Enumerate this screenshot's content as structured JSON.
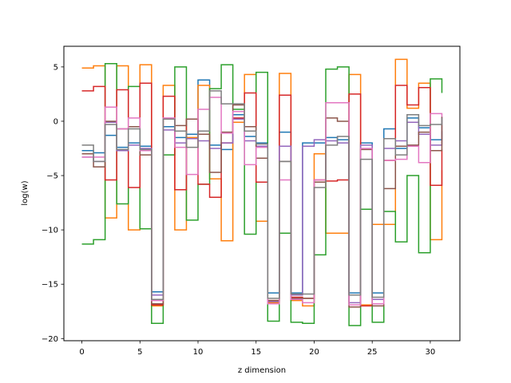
{
  "chart_data": {
    "type": "line",
    "step": "post",
    "xlabel": "z dimension",
    "ylabel": "log(w)",
    "xlim": [
      -1.55,
      32.55
    ],
    "ylim": [
      -20.2,
      6.9
    ],
    "xticks": [
      0,
      5,
      10,
      15,
      20,
      25,
      30
    ],
    "yticks": [
      5,
      0,
      -5,
      -10,
      -15,
      -20
    ],
    "grid": false,
    "x": [
      0,
      1,
      2,
      3,
      4,
      5,
      6,
      7,
      8,
      9,
      10,
      11,
      12,
      13,
      14,
      15,
      16,
      17,
      18,
      19,
      20,
      21,
      22,
      23,
      24,
      25,
      26,
      27,
      28,
      29,
      30,
      31
    ],
    "series": [
      {
        "color": "#1f77b4",
        "values": [
          -2.7,
          -2.9,
          -1.3,
          -2.4,
          -2.0,
          -2.3,
          -15.7,
          -0.5,
          -1.5,
          -1.2,
          3.8,
          -2.2,
          -2.6,
          0.6,
          -1.4,
          -2.0,
          -15.8,
          -1.0,
          -15.8,
          -2.0,
          -2.0,
          -1.5,
          -1.7,
          -15.8,
          -2.0,
          -15.8,
          -0.7,
          -2.5,
          0.3,
          -0.6,
          -1.7,
          -0.9
        ]
      },
      {
        "color": "#ff7f0e",
        "values": [
          4.9,
          5.1,
          -8.9,
          5.1,
          -10.0,
          5.2,
          -17.0,
          3.3,
          -10.0,
          -1.5,
          3.3,
          -5.3,
          -11.0,
          -0.1,
          4.3,
          -9.2,
          -16.7,
          4.4,
          -16.5,
          -17.0,
          -3.0,
          -10.3,
          -10.3,
          4.3,
          -16.9,
          -9.5,
          -9.5,
          5.7,
          1.2,
          3.5,
          -10.9,
          -4.5
        ]
      },
      {
        "color": "#2ca02c",
        "values": [
          -11.3,
          -10.9,
          5.3,
          -7.6,
          3.2,
          -9.9,
          -18.6,
          -3.1,
          5.0,
          -9.1,
          -5.8,
          3.0,
          5.2,
          1.1,
          -10.4,
          4.5,
          -18.4,
          -10.3,
          -18.5,
          -18.6,
          -12.3,
          4.8,
          5.0,
          -18.8,
          -8.1,
          -18.5,
          -8.3,
          -11.1,
          -5.0,
          -12.1,
          3.9,
          2.6
        ]
      },
      {
        "color": "#d62728",
        "values": [
          2.8,
          3.2,
          -5.4,
          2.9,
          -6.1,
          3.5,
          -16.9,
          2.3,
          -6.3,
          0.2,
          -5.8,
          -7.0,
          -2.0,
          0.3,
          2.6,
          -5.6,
          -16.5,
          2.4,
          -16.2,
          -16.3,
          -5.4,
          -5.5,
          -5.4,
          2.5,
          -17.0,
          -16.8,
          -3.6,
          3.3,
          1.5,
          3.1,
          -5.9,
          -2.6
        ]
      },
      {
        "color": "#9467bd",
        "values": [
          -3.3,
          -3.7,
          -0.1,
          -2.7,
          -2.2,
          -2.5,
          -16.0,
          -0.8,
          -2.0,
          -1.6,
          -1.8,
          -2.5,
          -2.0,
          0.2,
          -1.8,
          -2.3,
          -16.6,
          -2.3,
          -16.0,
          -2.3,
          -1.7,
          -1.8,
          -2.0,
          -16.7,
          -2.2,
          -16.4,
          -2.5,
          -1.8,
          -0.1,
          -1.2,
          -2.2,
          0.4
        ]
      },
      {
        "color": "#8c564b",
        "values": [
          -3.0,
          -4.2,
          0.0,
          -0.7,
          -0.5,
          -3.1,
          -16.8,
          0.2,
          -0.4,
          0.2,
          -1.2,
          -4.7,
          -1.0,
          1.5,
          -0.5,
          -3.4,
          -16.5,
          -3.7,
          -16.3,
          -16.3,
          -5.6,
          0.3,
          0.0,
          -17.1,
          -2.6,
          -17.0,
          -6.2,
          -2.3,
          -2.2,
          -1.0,
          -2.7,
          0.4
        ]
      },
      {
        "color": "#e377c2",
        "values": [
          -3.3,
          -3.3,
          1.3,
          -0.7,
          0.3,
          -2.7,
          -16.5,
          0.3,
          -2.4,
          -4.9,
          1.1,
          2.2,
          -1.1,
          0.9,
          -4.0,
          -2.4,
          -16.8,
          -5.4,
          -16.4,
          -16.7,
          -5.4,
          1.7,
          1.7,
          -16.9,
          -2.5,
          -16.8,
          -3.6,
          -3.5,
          -2.3,
          -3.8,
          0.7,
          0.4
        ]
      },
      {
        "color": "#7f7f7f",
        "values": [
          -2.2,
          -3.7,
          -0.3,
          -2.6,
          -0.7,
          -2.6,
          -16.4,
          0.2,
          -0.9,
          -2.4,
          -0.9,
          2.8,
          1.6,
          1.6,
          -0.9,
          -2.1,
          -16.3,
          -3.7,
          -15.9,
          -15.9,
          -6.1,
          -2.2,
          -1.4,
          -16.0,
          -3.5,
          -16.2,
          -1.6,
          -3.1,
          0.6,
          -0.4,
          -0.3,
          0.3
        ]
      }
    ]
  }
}
